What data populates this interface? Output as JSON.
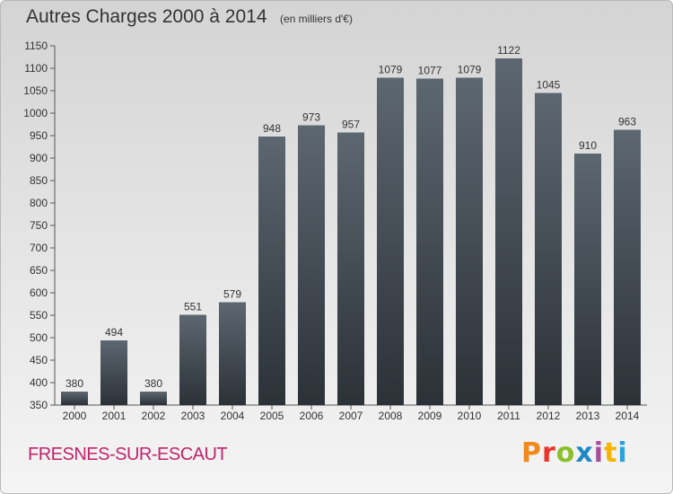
{
  "chart_data": {
    "type": "bar",
    "title": "Autres Charges 2000 à 2014",
    "subtitle": "(en milliers d'€)",
    "categories": [
      "2000",
      "2001",
      "2002",
      "2003",
      "2004",
      "2005",
      "2006",
      "2007",
      "2008",
      "2009",
      "2010",
      "2011",
      "2012",
      "2013",
      "2014"
    ],
    "values": [
      380,
      494,
      380,
      551,
      579,
      948,
      973,
      957,
      1079,
      1077,
      1079,
      1122,
      1045,
      910,
      963
    ],
    "data_labels": [
      "380",
      "494",
      "380",
      "551",
      "579",
      "948",
      "973",
      "957",
      "1079",
      "1077",
      "1079",
      "1122",
      "1045",
      "910",
      "963"
    ],
    "ylim": [
      350,
      1150
    ],
    "yticks": [
      350,
      400,
      450,
      500,
      550,
      600,
      650,
      700,
      750,
      800,
      850,
      900,
      950,
      1000,
      1050,
      1100,
      1150
    ],
    "grid": false,
    "bar_color_top": "#5d6770",
    "bar_color_bottom": "#2b3137"
  },
  "footer": {
    "location": "FRESNES-SUR-ESCAUT",
    "logo_text": "Proxiti"
  }
}
